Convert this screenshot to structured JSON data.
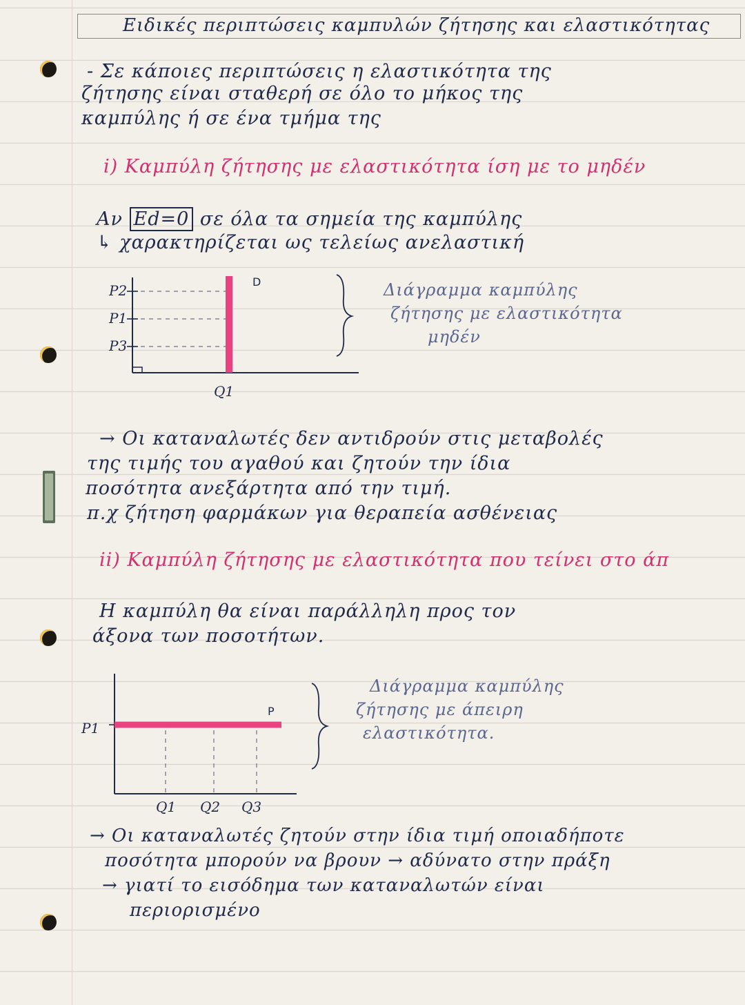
{
  "title": "Ειδικές περιπτώσεις καμπυλών ζήτησης και ελαστικότητας",
  "intro": [
    "- Σε κάποιες περιπτώσεις η ελαστικότητα της",
    "ζήτησης είναι σταθερή σε όλο το μήκος της",
    "καμπύλης ή σε ένα τμήμα της"
  ],
  "section1": {
    "heading": "i) Καμπύλη ζήτησης με ελαστικότητα ίση με το μηδέν",
    "line1_prefix": "Αν",
    "formula": "Ed=0",
    "line1_suffix": "σε όλα τα σημεία της καμπύλης",
    "line2": "↳ χαρακτηρίζεται ως τελείως ανελαστική",
    "caption": [
      "Διάγραμμα καμπύλης",
      "ζήτησης με ελαστικότητα",
      "μηδέν"
    ],
    "notes": [
      "→ Οι καταναλωτές δεν αντιδρούν στις μεταβολές",
      "της τιμής του αγαθού και ζητούν την ίδια",
      "ποσότητα ανεξάρτητα από την τιμή.",
      "π.χ ζήτηση φαρμάκων για θεραπεία ασθένειας"
    ]
  },
  "section2": {
    "heading": "ii) Καμπύλη ζήτησης με ελαστικότητα που τείνει στο άπ",
    "body": [
      "Η καμπύλη θα είναι παράλληλη προς τον",
      "άξονα των ποσοτήτων."
    ],
    "caption": [
      "Διάγραμμα καμπύλης",
      "ζήτησης με άπειρη",
      "ελαστικότητα."
    ],
    "notes": [
      "→ Οι καταναλωτές ζητούν στην ίδια τιμή οποιαδήποτε",
      "ποσότητα μπορούν να βρουν → αδύνατο στην πράξη",
      "→ γιατί το εισόδημα των καταναλωτών είναι",
      "περιορισμένο"
    ]
  },
  "chart_data": [
    {
      "type": "line",
      "y_tick_labels": [
        "P2",
        "P1",
        "P3"
      ],
      "x_tick_labels": [
        "Q1"
      ],
      "series": [
        {
          "name": "D",
          "points": [
            [
              "Q1",
              "P3"
            ],
            [
              "Q1",
              "P2"
            ]
          ]
        }
      ],
      "colors": {
        "curve": "#e8437f",
        "axes": "#1f2a4a"
      }
    },
    {
      "type": "line",
      "y_tick_labels": [
        "P1"
      ],
      "x_tick_labels": [
        "Q1",
        "Q2",
        "Q3"
      ],
      "series": [
        {
          "name": "P",
          "points": [
            [
              "Q1",
              "P1"
            ],
            [
              "Q3",
              "P1"
            ]
          ]
        }
      ],
      "colors": {
        "curve": "#e8437f",
        "axes": "#1f2a4a"
      }
    }
  ]
}
